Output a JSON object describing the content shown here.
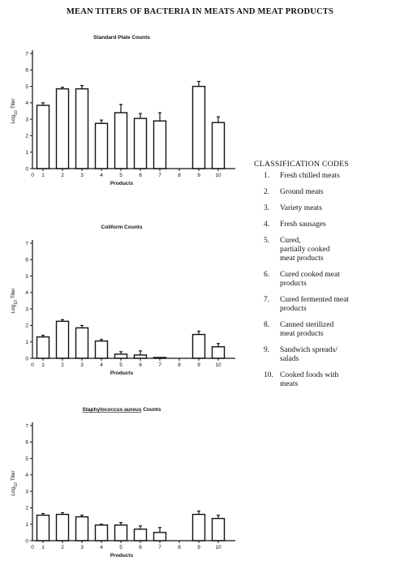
{
  "title": "MEAN TITERS OF BACTERIA IN MEATS AND MEAT PRODUCTS",
  "colors": {
    "ink": "#111111"
  },
  "chart_data": [
    {
      "type": "bar",
      "title": "Standard Plate Counts",
      "xlabel": "Products",
      "ylabel_main": "Log",
      "ylabel_sub": "10",
      "ylabel_tail": "Titer",
      "ylim": [
        0,
        7
      ],
      "yticks": [
        "0",
        "1",
        "2",
        "3",
        "4",
        "5",
        "6",
        "7"
      ],
      "categories": [
        "1",
        "2",
        "3",
        "4",
        "5",
        "6",
        "7",
        "8",
        "9",
        "10"
      ],
      "x_tick_zero": "0",
      "values": [
        3.85,
        4.85,
        4.85,
        2.75,
        3.4,
        3.05,
        2.9,
        0,
        5.0,
        2.8
      ],
      "errors": [
        0.15,
        0.1,
        0.2,
        0.2,
        0.5,
        0.3,
        0.5,
        0,
        0.3,
        0.35
      ]
    },
    {
      "type": "bar",
      "title": "Coliform Counts",
      "xlabel": "Products",
      "ylabel_main": "Log",
      "ylabel_sub": "10",
      "ylabel_tail": "Titer",
      "ylim": [
        0,
        7
      ],
      "yticks": [
        "0",
        "1",
        "2",
        "3",
        "4",
        "5",
        "6",
        "7"
      ],
      "categories": [
        "1",
        "2",
        "3",
        "4",
        "5",
        "6",
        "7",
        "8",
        "9",
        "10"
      ],
      "x_tick_zero": "0",
      "values": [
        1.3,
        2.25,
        1.85,
        1.05,
        0.25,
        0.2,
        0.05,
        0,
        1.45,
        0.7
      ],
      "errors": [
        0.1,
        0.1,
        0.15,
        0.1,
        0.15,
        0.25,
        0,
        0,
        0.2,
        0.2
      ]
    },
    {
      "type": "bar",
      "title": "Staphylococcus aureus Counts",
      "title_underlined": "Staphylococcus aureus",
      "title_tail": " Counts",
      "xlabel": "Products",
      "ylabel_main": "Log",
      "ylabel_sub": "10",
      "ylabel_tail": "Titer",
      "ylim": [
        0,
        7
      ],
      "yticks": [
        "0",
        "1",
        "2",
        "3",
        "4",
        "5",
        "6",
        "7"
      ],
      "categories": [
        "1",
        "2",
        "3",
        "4",
        "5",
        "6",
        "7",
        "8",
        "9",
        "10"
      ],
      "x_tick_zero": "0",
      "values": [
        1.55,
        1.6,
        1.45,
        0.95,
        0.95,
        0.7,
        0.5,
        0,
        1.6,
        1.35
      ],
      "errors": [
        0.1,
        0.1,
        0.1,
        0.05,
        0.15,
        0.2,
        0.3,
        0,
        0.2,
        0.2
      ]
    }
  ],
  "classification": {
    "title": "CLASSIFICATION CODES",
    "items": [
      {
        "num": "1.",
        "text": "Fresh chilled meats"
      },
      {
        "num": "2.",
        "text": "Ground meats"
      },
      {
        "num": "3.",
        "text": "Variety meats"
      },
      {
        "num": "4.",
        "text": "Fresh sausages"
      },
      {
        "num": "5.",
        "text": "Cured,\npartially cooked\nmeat products"
      },
      {
        "num": "6.",
        "text": "Cured cooked meat\nproducts"
      },
      {
        "num": "7.",
        "text": "Cured fermented meat\nproducts"
      },
      {
        "num": "8.",
        "text": "Canned sterilized\nmeat products"
      },
      {
        "num": "9.",
        "text": "Sandwich spreads/\nsalads"
      },
      {
        "num": "10.",
        "text": "Cooked foods with\nmeats"
      }
    ]
  }
}
